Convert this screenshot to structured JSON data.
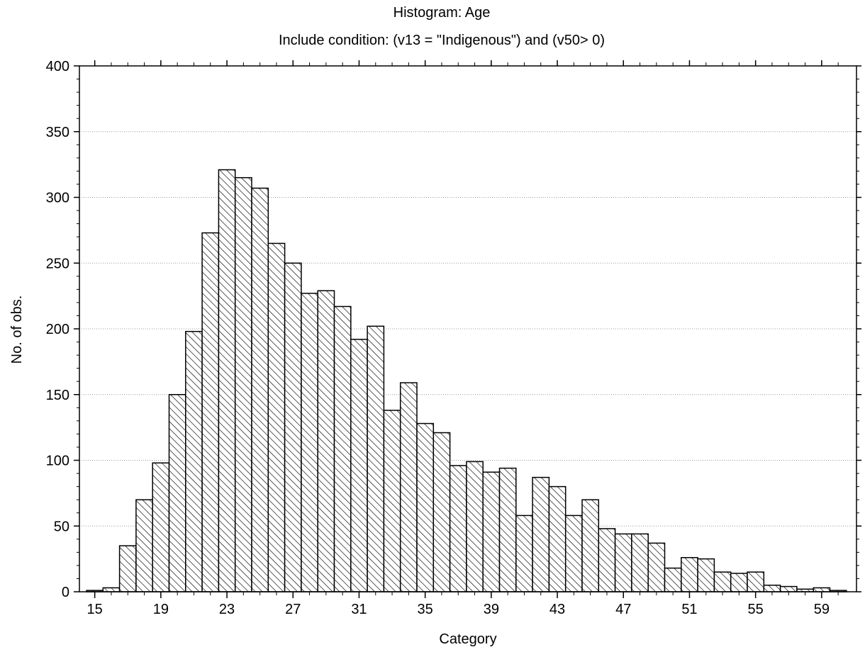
{
  "chart_data": {
    "type": "bar",
    "title": "Histogram: Age",
    "subtitle": "Include condition: (v13 = \"Indigenous\")  and (v50> 0)",
    "xlabel": "Category",
    "ylabel": "No. of obs.",
    "ylim": [
      0,
      400
    ],
    "yticks": [
      0,
      50,
      100,
      150,
      200,
      250,
      300,
      350,
      400
    ],
    "xtick_labels": [
      "15",
      "19",
      "23",
      "27",
      "31",
      "35",
      "39",
      "43",
      "47",
      "51",
      "55",
      "59"
    ],
    "categories": [
      15,
      16,
      17,
      18,
      19,
      20,
      21,
      22,
      23,
      24,
      25,
      26,
      27,
      28,
      29,
      30,
      31,
      32,
      33,
      34,
      35,
      36,
      37,
      38,
      39,
      40,
      41,
      42,
      43,
      44,
      45,
      46,
      47,
      48,
      49,
      50,
      51,
      52,
      53,
      54,
      55,
      56,
      57,
      58,
      59,
      60
    ],
    "values": [
      1,
      3,
      35,
      70,
      98,
      150,
      198,
      273,
      321,
      315,
      307,
      265,
      250,
      227,
      229,
      217,
      192,
      202,
      138,
      159,
      128,
      121,
      96,
      99,
      91,
      94,
      58,
      87,
      80,
      58,
      70,
      48,
      44,
      44,
      37,
      18,
      26,
      25,
      15,
      14,
      15,
      5,
      4,
      2,
      3,
      1
    ],
    "grid": "horizontal dotted",
    "bar_fill": "diagonal hatch",
    "bar_color": "#000000"
  }
}
